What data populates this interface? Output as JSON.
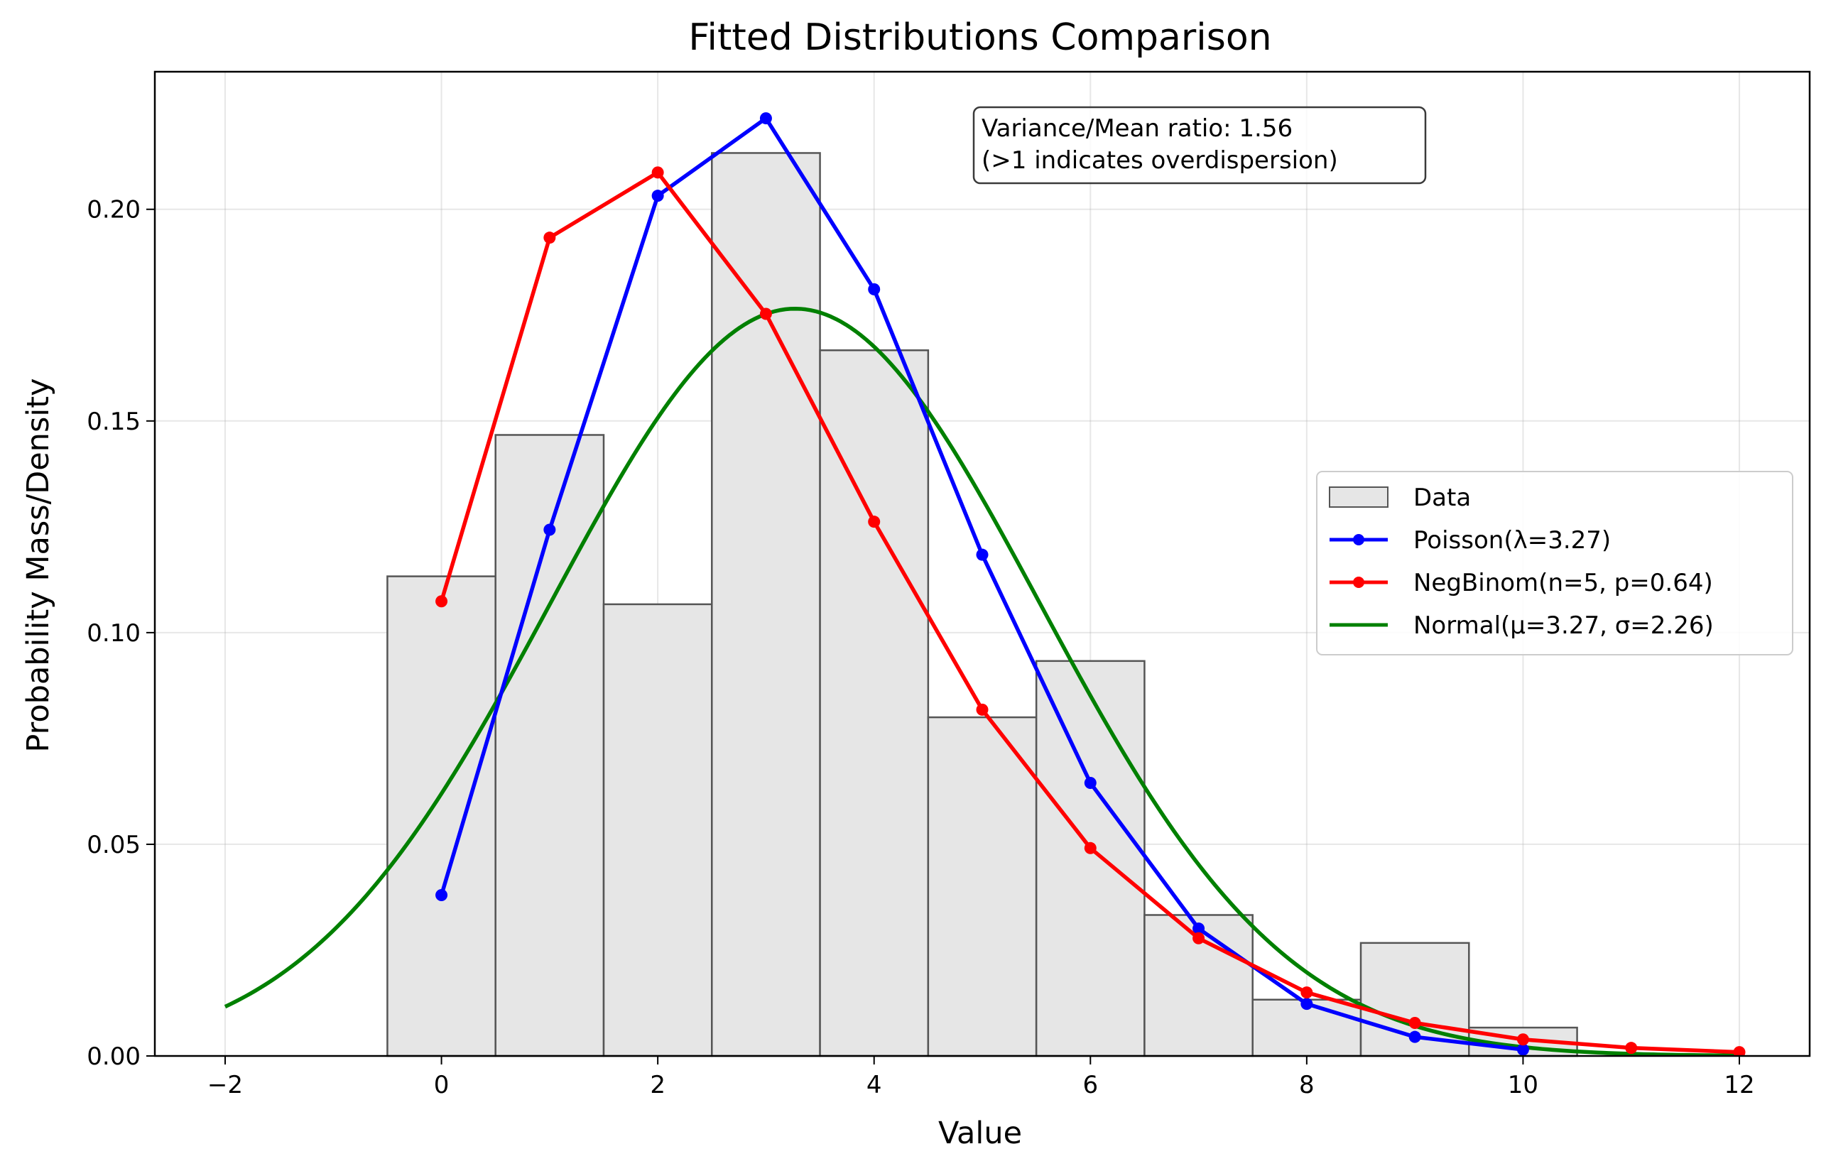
{
  "chart_data": {
    "type": "bar",
    "title": "Fitted Distributions Comparison",
    "xlabel": "Value",
    "ylabel": "Probability Mass/Density",
    "xlim": [
      -2.65,
      12.65
    ],
    "ylim": [
      0,
      0.2325
    ],
    "xticks": [
      -2,
      0,
      2,
      4,
      6,
      8,
      10,
      12
    ],
    "xtick_labels": [
      "−2",
      "0",
      "2",
      "4",
      "6",
      "8",
      "10",
      "12"
    ],
    "yticks": [
      0,
      0.05,
      0.1,
      0.15,
      0.2
    ],
    "ytick_labels": [
      "0.00",
      "0.05",
      "0.10",
      "0.15",
      "0.20"
    ],
    "grid": true,
    "legend_position": "center-right",
    "annotation": {
      "lines": [
        "Variance/Mean ratio: 1.56",
        "(>1 indicates overdispersion)"
      ],
      "position": "top-center-right"
    },
    "histogram": {
      "name": "Data",
      "bin_edges": [
        -0.5,
        0.5,
        1.5,
        2.5,
        3.5,
        4.5,
        5.5,
        6.5,
        7.5,
        8.5,
        9.5,
        10.5
      ],
      "values": [
        0.1133,
        0.1467,
        0.1067,
        0.2133,
        0.1667,
        0.08,
        0.0933,
        0.0333,
        0.0133,
        0.0267,
        0.0067
      ],
      "fill": "#e6e6e6",
      "edge": "#555555"
    },
    "series": [
      {
        "name": "Poisson(λ=3.27)",
        "type": "line-marker",
        "color": "#0000ff",
        "x": [
          0,
          1,
          2,
          3,
          4,
          5,
          6,
          7,
          8,
          9,
          10
        ],
        "y": [
          0.038,
          0.1243,
          0.2032,
          0.2215,
          0.1811,
          0.1184,
          0.0645,
          0.0301,
          0.0123,
          0.0045,
          0.0015
        ]
      },
      {
        "name": "NegBinom(n=5, p=0.64)",
        "type": "line-marker",
        "color": "#ff0000",
        "x": [
          0,
          1,
          2,
          3,
          4,
          5,
          6,
          7,
          8,
          9,
          10,
          11,
          12
        ],
        "y": [
          0.1074,
          0.1933,
          0.2087,
          0.1753,
          0.1262,
          0.0818,
          0.0491,
          0.0278,
          0.015,
          0.0078,
          0.0039,
          0.0019,
          0.0009
        ]
      },
      {
        "name": "Normal(μ=3.27, σ=2.26)",
        "type": "curve",
        "color": "#008000",
        "mu": 3.27,
        "sigma": 2.26,
        "x_range": [
          -2,
          12
        ]
      }
    ]
  }
}
